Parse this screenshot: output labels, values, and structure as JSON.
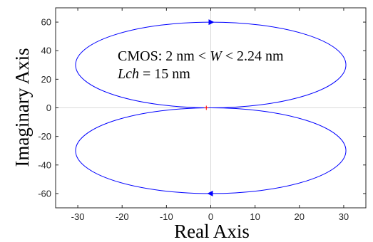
{
  "chart_data": {
    "type": "line",
    "title": "",
    "xlabel": "Real Axis",
    "ylabel": "Imaginary Axis",
    "xlim": [
      -35,
      35
    ],
    "ylim": [
      -70,
      70
    ],
    "xticks": [
      -30,
      -20,
      -10,
      0,
      10,
      20,
      30
    ],
    "yticks": [
      -60,
      -40,
      -20,
      0,
      20,
      40,
      60
    ],
    "xtick_labels": [
      "-30",
      "-20",
      "-10",
      "0",
      "10",
      "20",
      "30"
    ],
    "ytick_labels": [
      "-60",
      "-40",
      "-20",
      "0",
      "20",
      "40",
      "60"
    ],
    "grid": false,
    "zero_lines": true,
    "series_color": "#0000ff",
    "series": [
      {
        "shape": "ellipse",
        "center": [
          0,
          30
        ],
        "radius_x": 30.5,
        "radius_y": 30,
        "arrow_at": [
          0,
          60
        ],
        "arrow_direction": "right"
      },
      {
        "shape": "ellipse",
        "center": [
          0,
          -30
        ],
        "radius_x": 30.5,
        "radius_y": 30,
        "arrow_at": [
          0,
          -60
        ],
        "arrow_direction": "left"
      }
    ],
    "marker": {
      "x": -1,
      "y": 0,
      "symbol": "+",
      "color": "#ff0000"
    },
    "annotations": {
      "line1_prefix": "CMOS: 2 nm < ",
      "line1_var": "W",
      "line1_suffix": " < 2.24 nm",
      "line2_var": "Lch",
      "line2_suffix": " = 15 nm"
    }
  }
}
